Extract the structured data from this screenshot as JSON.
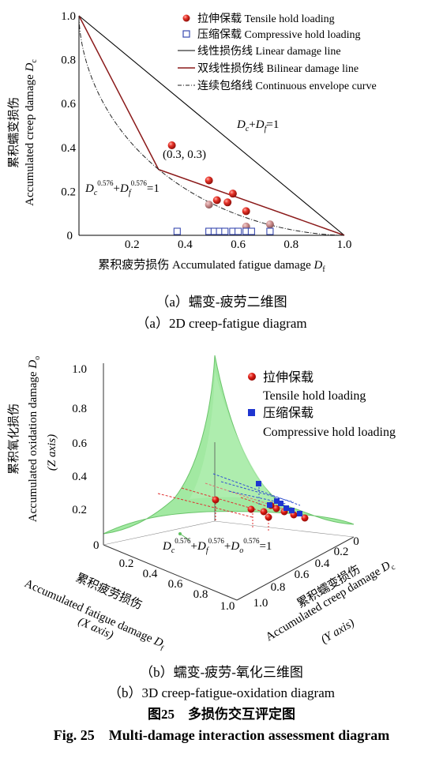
{
  "chart_data": [
    {
      "type": "scatter",
      "subplot": "(a)",
      "xlabel_zh": "累积疲劳损伤",
      "xlabel_en": "Accumulated fatigue damage",
      "xlabel_sym": "D",
      "xlabel_sub": "f",
      "ylabel_zh": "累积蠕变损伤",
      "ylabel_en": "Accumulated creep damage",
      "ylabel_sym": "D",
      "ylabel_sub": "c",
      "xlim": [
        0,
        1.0
      ],
      "ylim": [
        0,
        1.0
      ],
      "x_ticks": [
        "0.2",
        "0.4",
        "0.6",
        "0.8",
        "1.0"
      ],
      "y_ticks": [
        "0.2",
        "0.4",
        "0.6",
        "0.8",
        "1.0"
      ],
      "origin_label": "0",
      "legend_position": "top-right",
      "legend": [
        {
          "zh": "拉伸保载",
          "en": "Tensile hold loading",
          "marker": "red-sphere"
        },
        {
          "zh": "压缩保载",
          "en": "Compressive hold loading",
          "marker": "blue-open-square"
        },
        {
          "zh": "线性损伤线",
          "en": "Linear damage line",
          "line": "solid-black"
        },
        {
          "zh": "双线性损伤线",
          "en": "Bilinear damage line",
          "line": "solid-darkred"
        },
        {
          "zh": "连续包络线",
          "en": "Continuous envelope curve",
          "line": "dash-dot"
        }
      ],
      "annotations": {
        "linear_eq": "Dc+Df=1",
        "knee_label": "(0.3, 0.3)",
        "envelope_eq": "Dc^0.576+Df^0.576=1",
        "exponent": "0.576"
      },
      "lines": {
        "linear": [
          [
            0,
            1
          ],
          [
            1,
            0
          ]
        ],
        "bilinear": [
          [
            0,
            1
          ],
          [
            0.3,
            0.3
          ],
          [
            1,
            0
          ]
        ],
        "envelope_exponent": 0.576
      },
      "series": [
        {
          "name": "Tensile hold loading",
          "color": "#d42020",
          "points": [
            [
              0.35,
              0.41
            ],
            [
              0.49,
              0.25
            ],
            [
              0.52,
              0.16
            ],
            [
              0.56,
              0.15
            ],
            [
              0.58,
              0.19
            ],
            [
              0.63,
              0.11
            ],
            [
              0.49,
              0.14
            ],
            [
              0.63,
              0.04
            ],
            [
              0.72,
              0.05
            ]
          ]
        },
        {
          "name": "Compressive hold loading",
          "color": "#3a4bb0",
          "points": [
            [
              0.37,
              0.0
            ],
            [
              0.49,
              0.0
            ],
            [
              0.51,
              0.0
            ],
            [
              0.53,
              0.0
            ],
            [
              0.55,
              0.0
            ],
            [
              0.58,
              0.0
            ],
            [
              0.6,
              0.0
            ],
            [
              0.63,
              0.0
            ],
            [
              0.65,
              0.0
            ],
            [
              0.72,
              0.0
            ]
          ]
        }
      ]
    },
    {
      "type": "scatter",
      "subplot": "(b)",
      "xlabel_zh": "累积疲劳损伤",
      "xlabel_en": "Accumulated fatigue damage",
      "xlabel_sym": "D",
      "xlabel_sub": "f",
      "xlabel_axis": "(X axis)",
      "ylabel_zh": "累积蠕变损伤",
      "ylabel_en": "Accumulated creep damage",
      "ylabel_sym": "D",
      "ylabel_sub": "c",
      "ylabel_axis": "(Y axis)",
      "zlabel_zh": "累积氧化损伤",
      "zlabel_en": "Accumulated oxidation damage",
      "zlabel_sym": "D",
      "zlabel_sub": "o",
      "zlabel_axis": "(Z axis)",
      "xlim": [
        0,
        1.0
      ],
      "ylim": [
        0,
        1.0
      ],
      "zlim": [
        0,
        1.0
      ],
      "x_ticks": [
        "0.2",
        "0.4",
        "0.6",
        "0.8",
        "1.0"
      ],
      "y_ticks": [
        "0",
        "0.2",
        "0.4",
        "0.6",
        "0.8",
        "1.0"
      ],
      "z_ticks": [
        "0.2",
        "0.4",
        "0.6",
        "0.8",
        "1.0"
      ],
      "origin_label": "0",
      "surface_color": "#9be89b",
      "surface_eq": "Dc^0.576+Df^0.576+Do^0.576=1",
      "exponent": "0.576",
      "legend_position": "top-right",
      "legend": [
        {
          "zh": "拉伸保载",
          "en": "Tensile hold loading",
          "color": "#e02020"
        },
        {
          "zh": "压缩保载",
          "en": "Compressive hold loading",
          "color": "#1f35d0"
        }
      ]
    }
  ],
  "captions": {
    "a_zh": "（a）蠕变-疲劳二维图",
    "a_en": "（a）2D creep-fatigue diagram",
    "b_zh": "（b）蠕变-疲劳-氧化三维图",
    "b_en": "（b）3D creep-fatigue-oxidation diagram",
    "fig_zh": "图25　多损伤交互评定图",
    "fig_en": "Fig. 25　Multi-damage interaction assessment diagram"
  }
}
